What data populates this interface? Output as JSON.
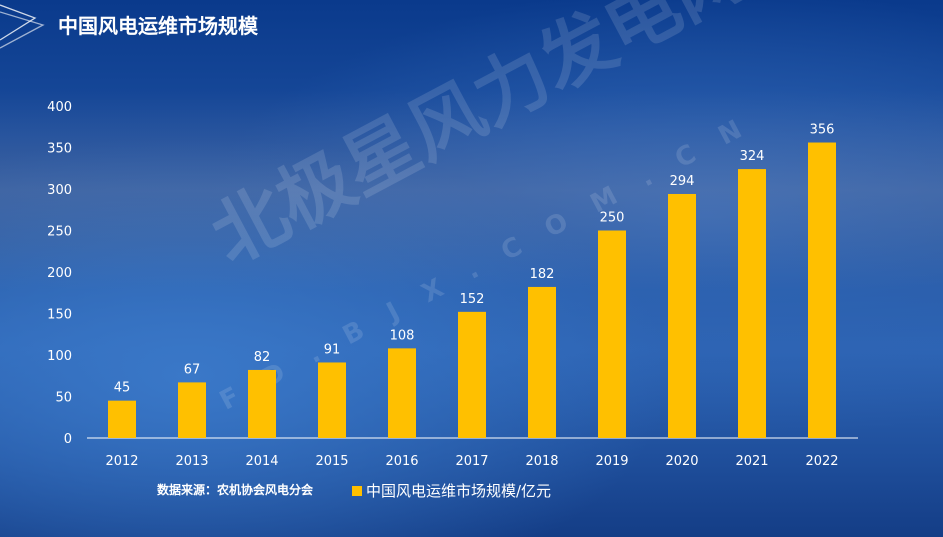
{
  "title": "中国风电运维市场规模",
  "source": "数据来源：农机协会风电分会",
  "watermark": {
    "brand": "北极星风力发电网",
    "url": "FD.BJX.COM.CN"
  },
  "colors": {
    "bar": "#ffc000",
    "axis": "#ffffff",
    "text": "#ffffff"
  },
  "chart_data": {
    "type": "bar",
    "title": "中国风电运维市场规模",
    "categories": [
      "2012",
      "2013",
      "2014",
      "2015",
      "2016",
      "2017",
      "2018",
      "2019",
      "2020",
      "2021",
      "2022"
    ],
    "series": [
      {
        "name": "中国风电运维市场规模/亿元",
        "values": [
          45,
          67,
          82,
          91,
          108,
          152,
          182,
          250,
          294,
          324,
          356
        ]
      }
    ],
    "yticks": [
      0,
      50,
      100,
      150,
      200,
      250,
      300,
      350,
      400
    ],
    "ylim": [
      0,
      400
    ],
    "xlabel": "",
    "ylabel": "",
    "grid": false,
    "legend": "bottom"
  }
}
